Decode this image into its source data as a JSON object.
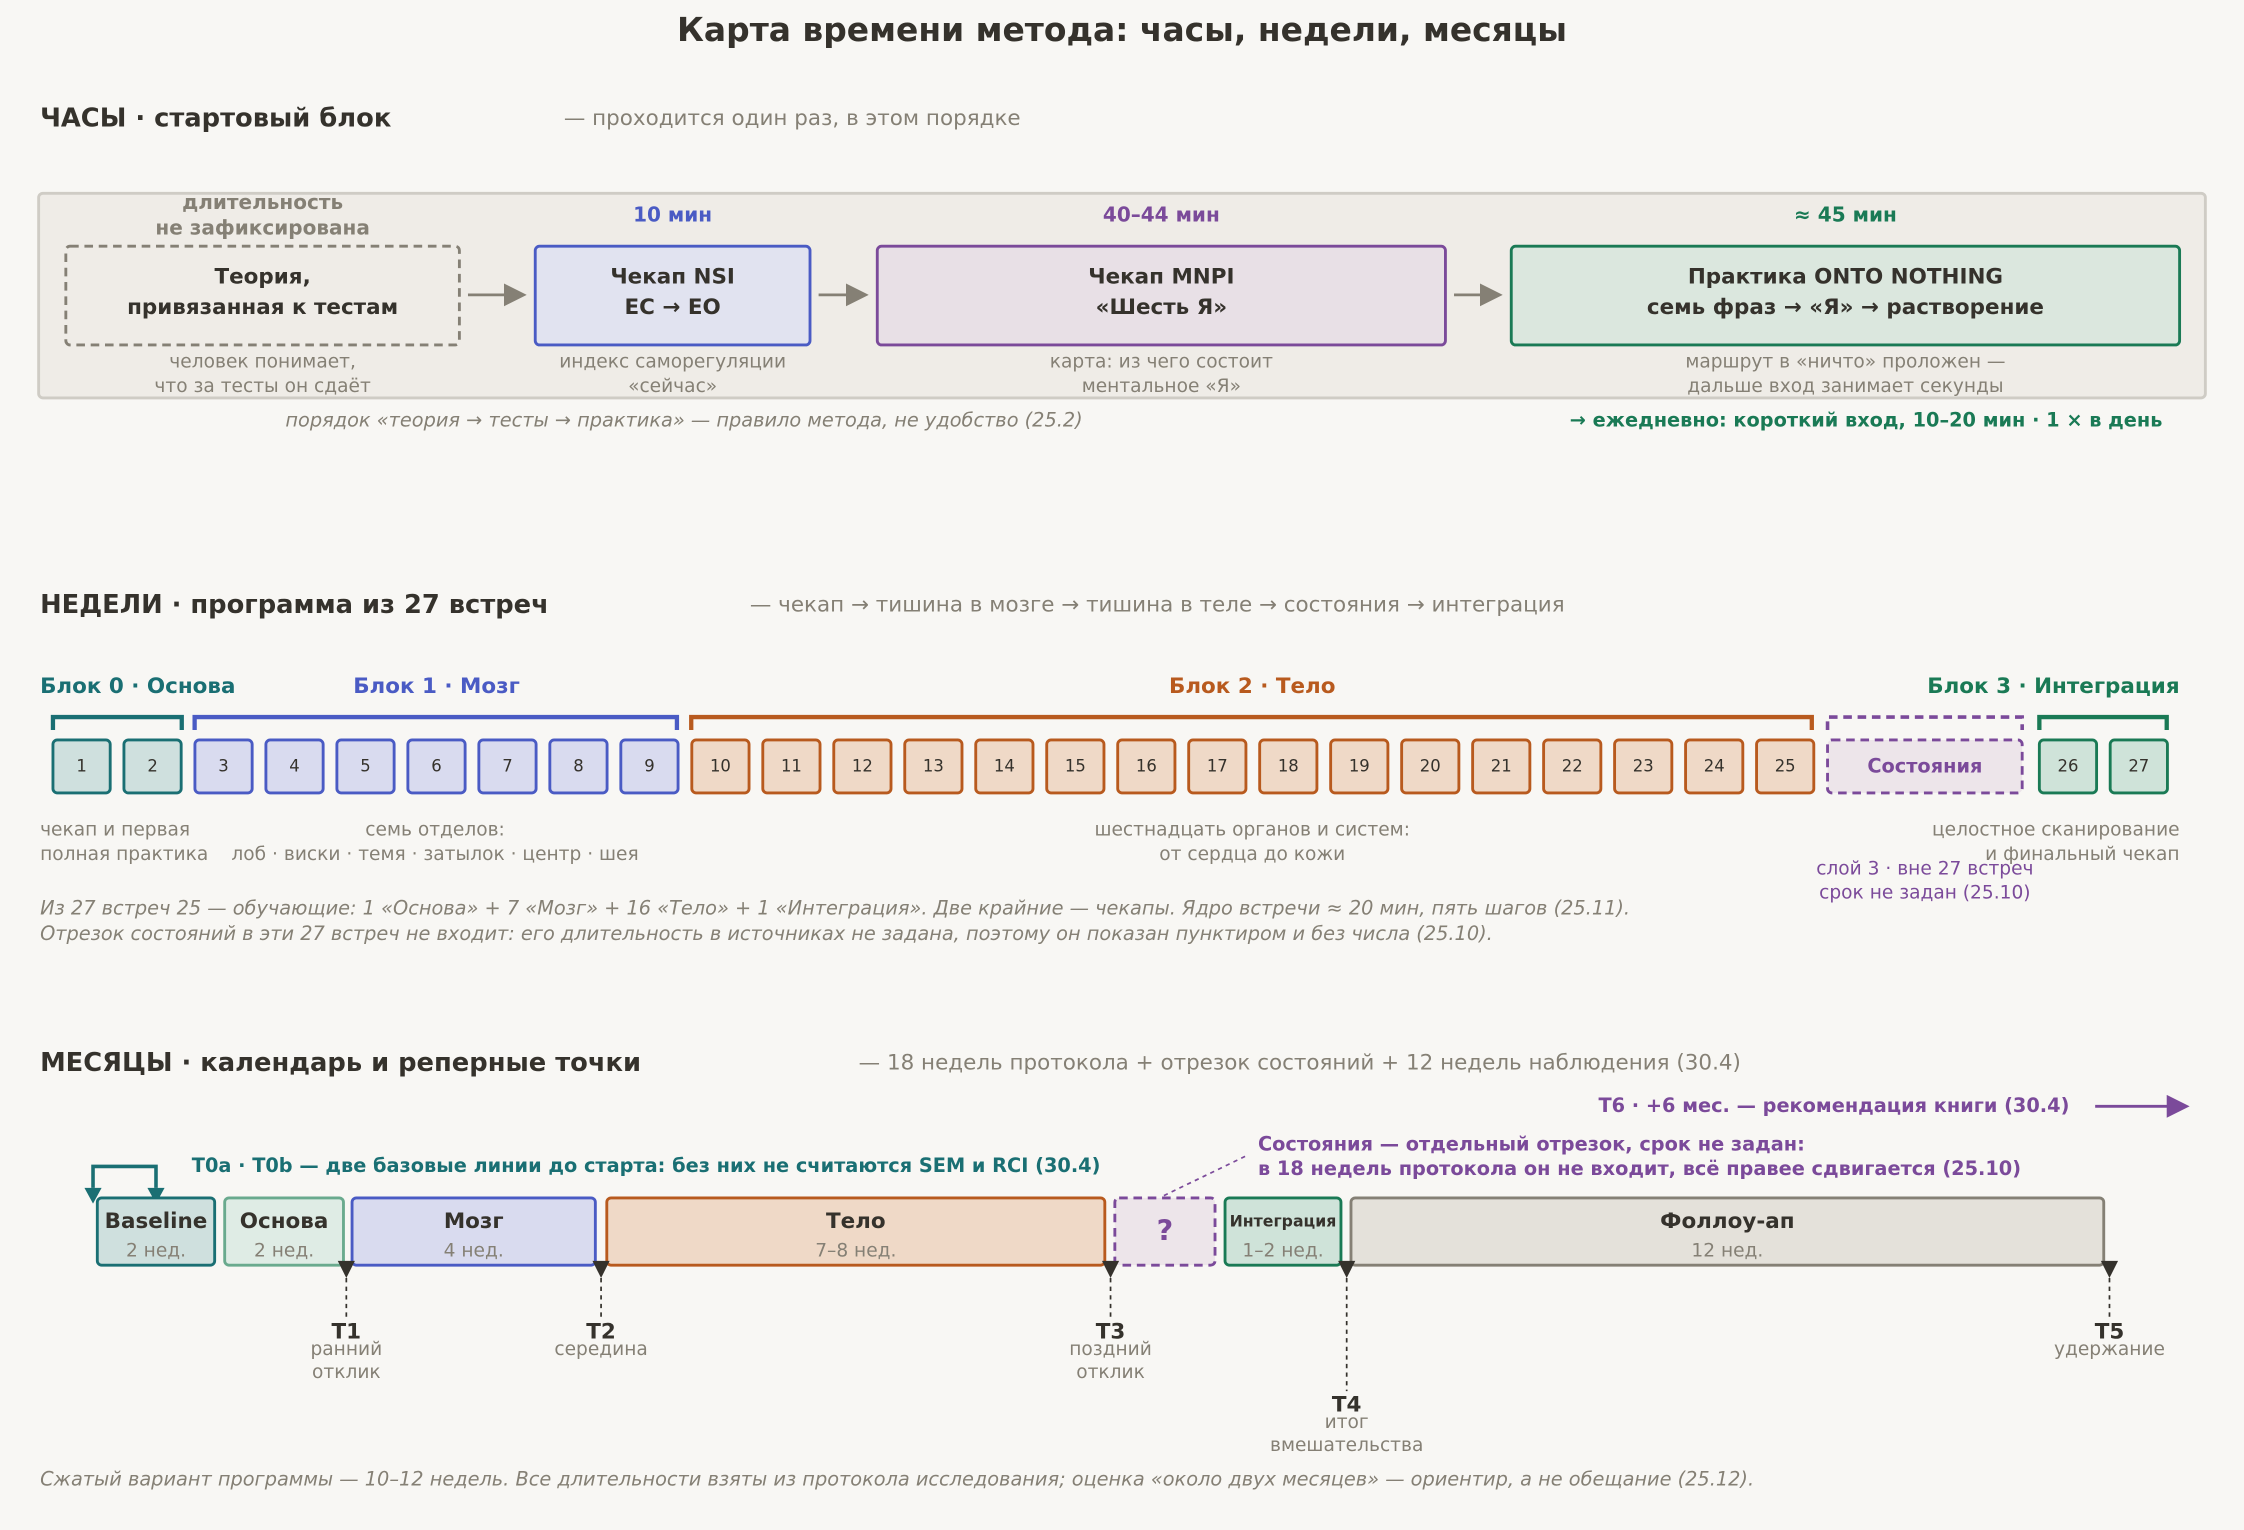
{
  "title": "Карта времени метода: часы, недели, месяцы",
  "hours": {
    "heading": "ЧАСЫ · стартовый блок",
    "subheading": "— проходится один раз, в этом порядке",
    "steps": [
      {
        "duration": [
          "длительность",
          "не зафиксирована"
        ],
        "label": [
          "Теория,",
          "привязанная к тестам"
        ],
        "note": [
          "человек понимает,",
          "что за тесты он сдаёт"
        ]
      },
      {
        "duration": [
          "10 мин"
        ],
        "label": [
          "Чекап NSI",
          "EC → EO"
        ],
        "note": [
          "индекс саморегуляции",
          "«сейчас»"
        ]
      },
      {
        "duration": [
          "40–44 мин"
        ],
        "label": [
          "Чекап MNPI",
          "«Шесть Я»"
        ],
        "note": [
          "карта: из чего состоит",
          "ментальное «Я»"
        ]
      },
      {
        "duration": [
          "≈ 45 мин"
        ],
        "label": [
          "Практика ONTO NOTHING",
          "семь фраз → «Я» → растворение"
        ],
        "note": [
          "маршрут в «ничто» проложен —",
          "дальше вход занимает секунды"
        ]
      }
    ],
    "footnote": "порядок «теория → тесты → практика» — правило метода, не удобство (25.2)",
    "daily": "→ ежедневно: короткий вход, 10–20 мин  ·  1 × в день"
  },
  "weeks": {
    "heading": "НЕДЕЛИ · программа из 27 встреч",
    "subheading": "— чекап → тишина в мозге → тишина в теле → состояния → интеграция",
    "blocks": [
      {
        "name": "Блок 0 · Основа",
        "note": [
          "чекап и первая",
          "полная практика"
        ]
      },
      {
        "name": "Блок 1 · Мозг",
        "note": [
          "семь отделов:",
          "лоб · виски · темя · затылок · центр · шея"
        ]
      },
      {
        "name": "Блок 2 · Тело",
        "note": [
          "шестнадцать органов и систем:",
          "от сердца до кожи"
        ]
      },
      {
        "name": "Блок 3 · Интеграция",
        "note": [
          "целостное сканирование",
          "и финальный чекап"
        ]
      }
    ],
    "meetings": [
      1,
      2,
      3,
      4,
      5,
      6,
      7,
      8,
      9,
      10,
      11,
      12,
      13,
      14,
      15,
      16,
      17,
      18,
      19,
      20,
      21,
      22,
      23,
      24,
      25,
      26,
      27
    ],
    "states": "Состояния",
    "states_note": [
      "слой 3 · вне 27 встреч",
      "срок не задан (25.10)"
    ],
    "footnote": [
      "Из 27 встреч 25 — обучающие: 1 «Основа» + 7 «Мозг» + 16 «Тело» + 1 «Интеграция». Две крайние — чекапы. Ядро встречи ≈ 20 мин, пять шагов (25.11).",
      "Отрезок состояний в эти 27 встреч не входит: его длительность в источниках не задана, поэтому он показан пунктиром и без числа (25.10)."
    ]
  },
  "months": {
    "heading": "МЕСЯЦЫ · календарь и реперные точки",
    "subheading": "— 18 недель протокола + отрезок состояний + 12 недель наблюдения (30.4)",
    "t6": "Т6 · +6 мес. — рекомендация книги (30.4)",
    "baseline_note": "T0a · T0b — две базовые линии до старта: без них не считаются SEM и RCI (30.4)",
    "states_note": [
      "Состояния — отдельный отрезок, срок не задан:",
      "в 18 недель протокола он не входит, всё правее сдвигается (25.10)"
    ],
    "phases": [
      {
        "name": "Baseline",
        "duration": "2 нед."
      },
      {
        "name": "Основа",
        "duration": "2 нед."
      },
      {
        "name": "Мозг",
        "duration": "4 нед."
      },
      {
        "name": "Тело",
        "duration": "7–8 нед."
      },
      {
        "name": "?"
      },
      {
        "name": "Интеграция",
        "duration": "1–2 нед."
      },
      {
        "name": "Фоллоу-ап",
        "duration": "12 нед."
      }
    ],
    "markers": [
      {
        "label": "T1",
        "note": [
          "ранний",
          "отклик"
        ]
      },
      {
        "label": "T2",
        "note": [
          "середина"
        ]
      },
      {
        "label": "T3",
        "note": [
          "поздний",
          "отклик"
        ]
      },
      {
        "label": "T4",
        "note": [
          "итог",
          "вмешательства"
        ]
      },
      {
        "label": "T5",
        "note": [
          "удержание"
        ]
      }
    ],
    "footnote": "Сжатый вариант программы — 10–12 недель. Все длительности взяты из протокола исследования; оценка «около двух месяцев» — ориентир, а не обещание (25.12)."
  }
}
